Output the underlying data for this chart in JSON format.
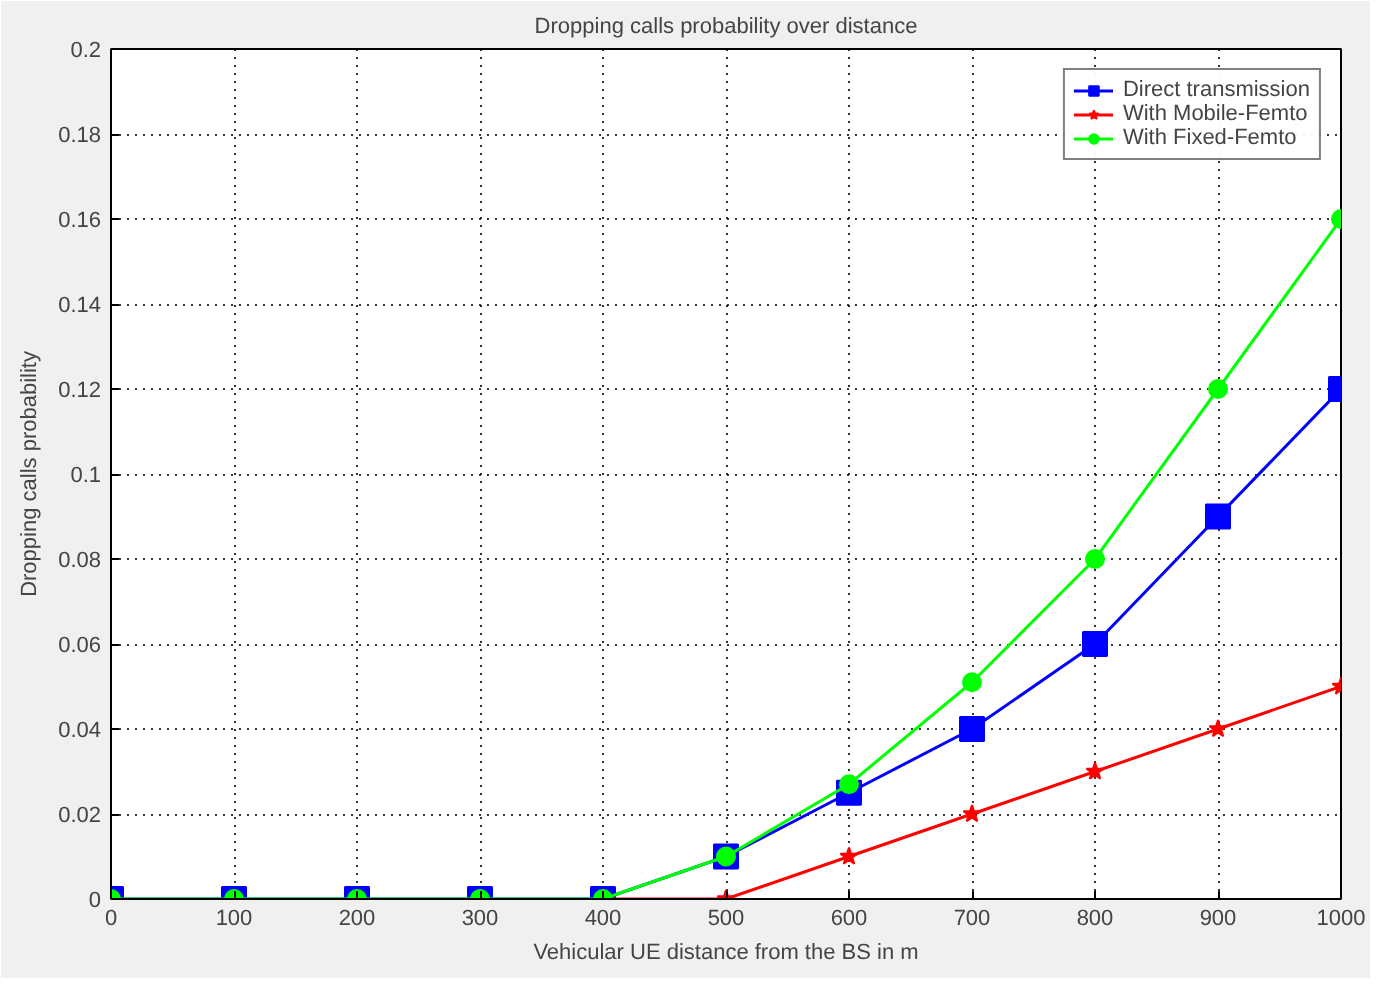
{
  "chart_data": {
    "type": "line",
    "title": "Dropping calls probability over distance",
    "xlabel": "Vehicular UE distance from the BS in m",
    "ylabel": "Dropping calls probability",
    "x": [
      0,
      100,
      200,
      300,
      400,
      500,
      600,
      700,
      800,
      900,
      1000
    ],
    "series": [
      {
        "name": "Direct transmission",
        "color": "#0000ff",
        "marker": "square",
        "values": [
          0,
          0,
          0,
          0,
          0,
          0.01,
          0.025,
          0.04,
          0.06,
          0.09,
          0.12
        ]
      },
      {
        "name": "With Mobile-Femto",
        "color": "#ff0000",
        "marker": "star",
        "values": [
          null,
          null,
          null,
          null,
          0,
          0,
          0.01,
          0.02,
          0.03,
          0.04,
          0.05
        ]
      },
      {
        "name": "With Fixed-Femto",
        "color": "#00ff00",
        "marker": "circle",
        "values": [
          0,
          0,
          0,
          0,
          0,
          0.01,
          0.027,
          0.051,
          0.08,
          0.12,
          0.16
        ]
      }
    ],
    "xlim": [
      0,
      1000
    ],
    "xticks": [
      0,
      100,
      200,
      300,
      400,
      500,
      600,
      700,
      800,
      900,
      1000
    ],
    "ylim": [
      0,
      0.2
    ],
    "yticks": [
      0,
      0.02,
      0.04,
      0.06,
      0.08,
      0.1,
      0.12,
      0.14,
      0.16,
      0.18,
      0.2
    ],
    "grid": true,
    "legend": "top right",
    "line_style": "solid"
  }
}
